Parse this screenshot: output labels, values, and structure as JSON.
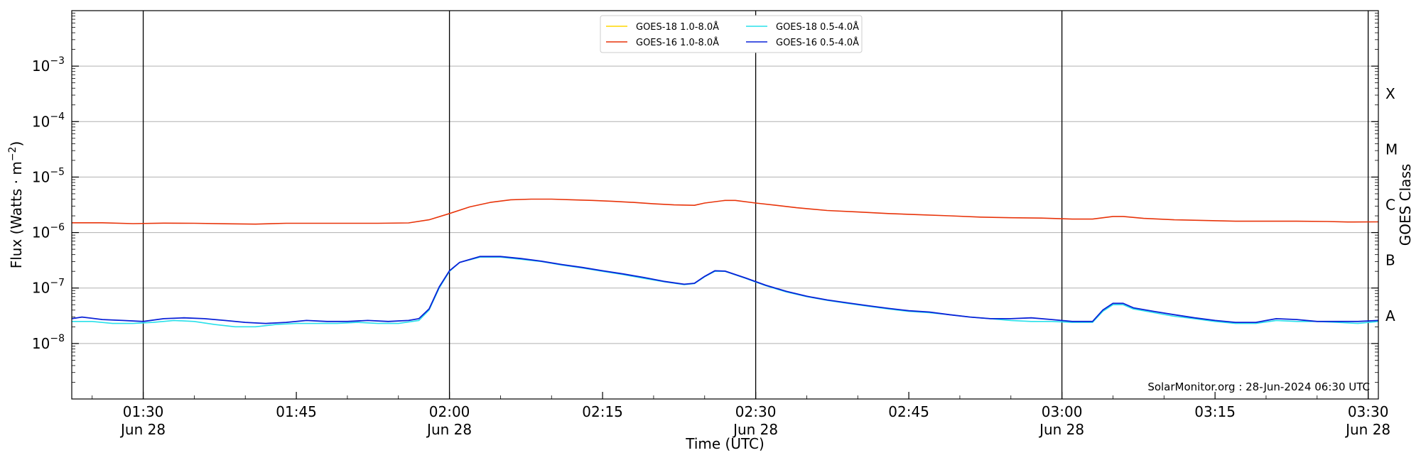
{
  "chart_data": {
    "type": "line",
    "title": "",
    "xlabel": "Time (UTC)",
    "ylabel_main": "Flux (Watts · m",
    "ylabel_sup": "−2",
    "ylabel_close": ")",
    "y2label": "GOES Class",
    "yscale": "log",
    "xlim": [
      "01:23",
      "03:31"
    ],
    "ylim": [
      1e-09,
      0.01
    ],
    "grid": true,
    "legend_position": "top-center",
    "x_ticks": [
      {
        "time": "01:30",
        "label": "01:30",
        "sub": "Jun 28"
      },
      {
        "time": "01:45",
        "label": "01:45",
        "sub": ""
      },
      {
        "time": "02:00",
        "label": "02:00",
        "sub": "Jun 28"
      },
      {
        "time": "02:15",
        "label": "02:15",
        "sub": ""
      },
      {
        "time": "02:30",
        "label": "02:30",
        "sub": "Jun 28"
      },
      {
        "time": "02:45",
        "label": "02:45",
        "sub": ""
      },
      {
        "time": "03:00",
        "label": "03:00",
        "sub": "Jun 28"
      },
      {
        "time": "03:15",
        "label": "03:15",
        "sub": ""
      },
      {
        "time": "03:30",
        "label": "03:30",
        "sub": "Jun 28"
      }
    ],
    "vlines": [
      "01:30",
      "02:00",
      "02:30",
      "03:00",
      "03:30"
    ],
    "y_ticks": [
      {
        "value": 1e-08,
        "base": "10",
        "exp": "−8"
      },
      {
        "value": 1e-07,
        "base": "10",
        "exp": "−7"
      },
      {
        "value": 1e-06,
        "base": "10",
        "exp": "−6"
      },
      {
        "value": 1e-05,
        "base": "10",
        "exp": "−5"
      },
      {
        "value": 0.0001,
        "base": "10",
        "exp": "−4"
      },
      {
        "value": 0.001,
        "base": "10",
        "exp": "−3"
      }
    ],
    "goes_classes": [
      {
        "label": "A",
        "value": 3.16e-08
      },
      {
        "label": "B",
        "value": 3.16e-07
      },
      {
        "label": "C",
        "value": 3.16e-06
      },
      {
        "label": "M",
        "value": 3.16e-05
      },
      {
        "label": "X",
        "value": 0.000316
      }
    ],
    "annotation": "SolarMonitor.org : 28-Jun-2024 06:30 UTC",
    "legend_columns": 2,
    "series": [
      {
        "name": "GOES-18 1.0-8.0Å",
        "color": "#ffd700",
        "points": []
      },
      {
        "name": "GOES-16 1.0-8.0Å",
        "color": "#e8340a",
        "points": [
          [
            "01:23",
            1.5e-06
          ],
          [
            "01:26",
            1.5e-06
          ],
          [
            "01:29",
            1.45e-06
          ],
          [
            "01:32",
            1.48e-06
          ],
          [
            "01:35",
            1.47e-06
          ],
          [
            "01:38",
            1.44e-06
          ],
          [
            "01:41",
            1.42e-06
          ],
          [
            "01:44",
            1.47e-06
          ],
          [
            "01:47",
            1.47e-06
          ],
          [
            "01:50",
            1.47e-06
          ],
          [
            "01:53",
            1.47e-06
          ],
          [
            "01:56",
            1.49e-06
          ],
          [
            "01:58",
            1.7e-06
          ],
          [
            "02:00",
            2.2e-06
          ],
          [
            "02:02",
            2.9e-06
          ],
          [
            "02:04",
            3.5e-06
          ],
          [
            "02:06",
            3.9e-06
          ],
          [
            "02:08",
            4e-06
          ],
          [
            "02:10",
            4e-06
          ],
          [
            "02:12",
            3.9e-06
          ],
          [
            "02:14",
            3.8e-06
          ],
          [
            "02:16",
            3.65e-06
          ],
          [
            "02:18",
            3.5e-06
          ],
          [
            "02:20",
            3.3e-06
          ],
          [
            "02:22",
            3.15e-06
          ],
          [
            "02:24",
            3.1e-06
          ],
          [
            "02:25",
            3.4e-06
          ],
          [
            "02:27",
            3.8e-06
          ],
          [
            "02:28",
            3.8e-06
          ],
          [
            "02:30",
            3.4e-06
          ],
          [
            "02:32",
            3.1e-06
          ],
          [
            "02:34",
            2.8e-06
          ],
          [
            "02:37",
            2.5e-06
          ],
          [
            "02:40",
            2.35e-06
          ],
          [
            "02:43",
            2.2e-06
          ],
          [
            "02:46",
            2.1e-06
          ],
          [
            "02:49",
            2e-06
          ],
          [
            "02:52",
            1.9e-06
          ],
          [
            "02:55",
            1.85e-06
          ],
          [
            "02:58",
            1.82e-06
          ],
          [
            "03:01",
            1.75e-06
          ],
          [
            "03:03",
            1.75e-06
          ],
          [
            "03:05",
            1.95e-06
          ],
          [
            "03:06",
            1.95e-06
          ],
          [
            "03:08",
            1.8e-06
          ],
          [
            "03:11",
            1.7e-06
          ],
          [
            "03:14",
            1.65e-06
          ],
          [
            "03:17",
            1.6e-06
          ],
          [
            "03:20",
            1.6e-06
          ],
          [
            "03:23",
            1.6e-06
          ],
          [
            "03:26",
            1.58e-06
          ],
          [
            "03:28",
            1.55e-06
          ],
          [
            "03:31",
            1.56e-06
          ]
        ]
      },
      {
        "name": "GOES-18 0.5-4.0Å",
        "color": "#29e0ea",
        "points": [
          [
            "01:23",
            2.5e-08
          ],
          [
            "01:25",
            2.5e-08
          ],
          [
            "01:27",
            2.3e-08
          ],
          [
            "01:29",
            2.3e-08
          ],
          [
            "01:31",
            2.4e-08
          ],
          [
            "01:33",
            2.6e-08
          ],
          [
            "01:35",
            2.5e-08
          ],
          [
            "01:37",
            2.2e-08
          ],
          [
            "01:39",
            2e-08
          ],
          [
            "01:41",
            2e-08
          ],
          [
            "01:43",
            2.2e-08
          ],
          [
            "01:45",
            2.3e-08
          ],
          [
            "01:47",
            2.3e-08
          ],
          [
            "01:49",
            2.3e-08
          ],
          [
            "01:51",
            2.4e-08
          ],
          [
            "01:53",
            2.3e-08
          ],
          [
            "01:55",
            2.3e-08
          ],
          [
            "01:57",
            2.6e-08
          ],
          [
            "01:58",
            4e-08
          ],
          [
            "01:59",
            1e-07
          ],
          [
            "02:00",
            2e-07
          ],
          [
            "02:01",
            2.9e-07
          ],
          [
            "02:03",
            3.6e-07
          ],
          [
            "02:05",
            3.6e-07
          ],
          [
            "02:07",
            3.3e-07
          ],
          [
            "02:09",
            3e-07
          ],
          [
            "02:11",
            2.6e-07
          ],
          [
            "02:13",
            2.3e-07
          ],
          [
            "02:15",
            2e-07
          ],
          [
            "02:17",
            1.75e-07
          ],
          [
            "02:19",
            1.5e-07
          ],
          [
            "02:21",
            1.3e-07
          ],
          [
            "02:23",
            1.15e-07
          ],
          [
            "02:24",
            1.2e-07
          ],
          [
            "02:25",
            1.6e-07
          ],
          [
            "02:26",
            2e-07
          ],
          [
            "02:27",
            2e-07
          ],
          [
            "02:29",
            1.5e-07
          ],
          [
            "02:31",
            1.1e-07
          ],
          [
            "02:33",
            8.5e-08
          ],
          [
            "02:35",
            7e-08
          ],
          [
            "02:37",
            6e-08
          ],
          [
            "02:39",
            5.3e-08
          ],
          [
            "02:41",
            4.7e-08
          ],
          [
            "02:43",
            4.2e-08
          ],
          [
            "02:45",
            3.8e-08
          ],
          [
            "02:47",
            3.6e-08
          ],
          [
            "02:49",
            3.3e-08
          ],
          [
            "02:51",
            3e-08
          ],
          [
            "02:53",
            2.8e-08
          ],
          [
            "02:55",
            2.6e-08
          ],
          [
            "02:57",
            2.5e-08
          ],
          [
            "02:59",
            2.5e-08
          ],
          [
            "03:01",
            2.4e-08
          ],
          [
            "03:03",
            2.4e-08
          ],
          [
            "03:04",
            3.8e-08
          ],
          [
            "03:05",
            5e-08
          ],
          [
            "03:06",
            5e-08
          ],
          [
            "03:07",
            4.2e-08
          ],
          [
            "03:09",
            3.6e-08
          ],
          [
            "03:11",
            3.1e-08
          ],
          [
            "03:13",
            2.8e-08
          ],
          [
            "03:15",
            2.5e-08
          ],
          [
            "03:17",
            2.3e-08
          ],
          [
            "03:19",
            2.3e-08
          ],
          [
            "03:21",
            2.6e-08
          ],
          [
            "03:23",
            2.5e-08
          ],
          [
            "03:25",
            2.5e-08
          ],
          [
            "03:27",
            2.4e-08
          ],
          [
            "03:29",
            2.3e-08
          ],
          [
            "03:31",
            2.5e-08
          ]
        ]
      },
      {
        "name": "GOES-16 0.5-4.0Å",
        "color": "#0a22d8",
        "points": [
          [
            "01:23",
            2.8e-08
          ],
          [
            "01:24",
            3e-08
          ],
          [
            "01:26",
            2.7e-08
          ],
          [
            "01:28",
            2.6e-08
          ],
          [
            "01:30",
            2.5e-08
          ],
          [
            "01:32",
            2.8e-08
          ],
          [
            "01:34",
            2.9e-08
          ],
          [
            "01:36",
            2.8e-08
          ],
          [
            "01:38",
            2.6e-08
          ],
          [
            "01:40",
            2.4e-08
          ],
          [
            "01:42",
            2.3e-08
          ],
          [
            "01:44",
            2.4e-08
          ],
          [
            "01:46",
            2.6e-08
          ],
          [
            "01:48",
            2.5e-08
          ],
          [
            "01:50",
            2.5e-08
          ],
          [
            "01:52",
            2.6e-08
          ],
          [
            "01:54",
            2.5e-08
          ],
          [
            "01:56",
            2.6e-08
          ],
          [
            "01:57",
            2.8e-08
          ],
          [
            "01:58",
            4.2e-08
          ],
          [
            "01:59",
            1.05e-07
          ],
          [
            "02:00",
            2.05e-07
          ],
          [
            "02:01",
            2.9e-07
          ],
          [
            "02:03",
            3.7e-07
          ],
          [
            "02:05",
            3.7e-07
          ],
          [
            "02:07",
            3.4e-07
          ],
          [
            "02:09",
            3.05e-07
          ],
          [
            "02:11",
            2.65e-07
          ],
          [
            "02:13",
            2.35e-07
          ],
          [
            "02:15",
            2.05e-07
          ],
          [
            "02:17",
            1.8e-07
          ],
          [
            "02:19",
            1.55e-07
          ],
          [
            "02:21",
            1.32e-07
          ],
          [
            "02:23",
            1.17e-07
          ],
          [
            "02:24",
            1.22e-07
          ],
          [
            "02:25",
            1.62e-07
          ],
          [
            "02:26",
            2.05e-07
          ],
          [
            "02:27",
            2.02e-07
          ],
          [
            "02:29",
            1.52e-07
          ],
          [
            "02:31",
            1.12e-07
          ],
          [
            "02:33",
            8.7e-08
          ],
          [
            "02:35",
            7.1e-08
          ],
          [
            "02:37",
            6.1e-08
          ],
          [
            "02:39",
            5.4e-08
          ],
          [
            "02:41",
            4.8e-08
          ],
          [
            "02:43",
            4.3e-08
          ],
          [
            "02:45",
            3.9e-08
          ],
          [
            "02:47",
            3.7e-08
          ],
          [
            "02:49",
            3.3e-08
          ],
          [
            "02:51",
            3e-08
          ],
          [
            "02:53",
            2.8e-08
          ],
          [
            "02:55",
            2.8e-08
          ],
          [
            "02:57",
            2.9e-08
          ],
          [
            "02:59",
            2.7e-08
          ],
          [
            "03:01",
            2.5e-08
          ],
          [
            "03:03",
            2.5e-08
          ],
          [
            "03:04",
            4e-08
          ],
          [
            "03:05",
            5.3e-08
          ],
          [
            "03:06",
            5.3e-08
          ],
          [
            "03:07",
            4.4e-08
          ],
          [
            "03:09",
            3.8e-08
          ],
          [
            "03:11",
            3.3e-08
          ],
          [
            "03:13",
            2.9e-08
          ],
          [
            "03:15",
            2.6e-08
          ],
          [
            "03:17",
            2.4e-08
          ],
          [
            "03:19",
            2.4e-08
          ],
          [
            "03:21",
            2.8e-08
          ],
          [
            "03:23",
            2.7e-08
          ],
          [
            "03:25",
            2.5e-08
          ],
          [
            "03:27",
            2.5e-08
          ],
          [
            "03:29",
            2.5e-08
          ],
          [
            "03:31",
            2.6e-08
          ]
        ]
      }
    ]
  }
}
